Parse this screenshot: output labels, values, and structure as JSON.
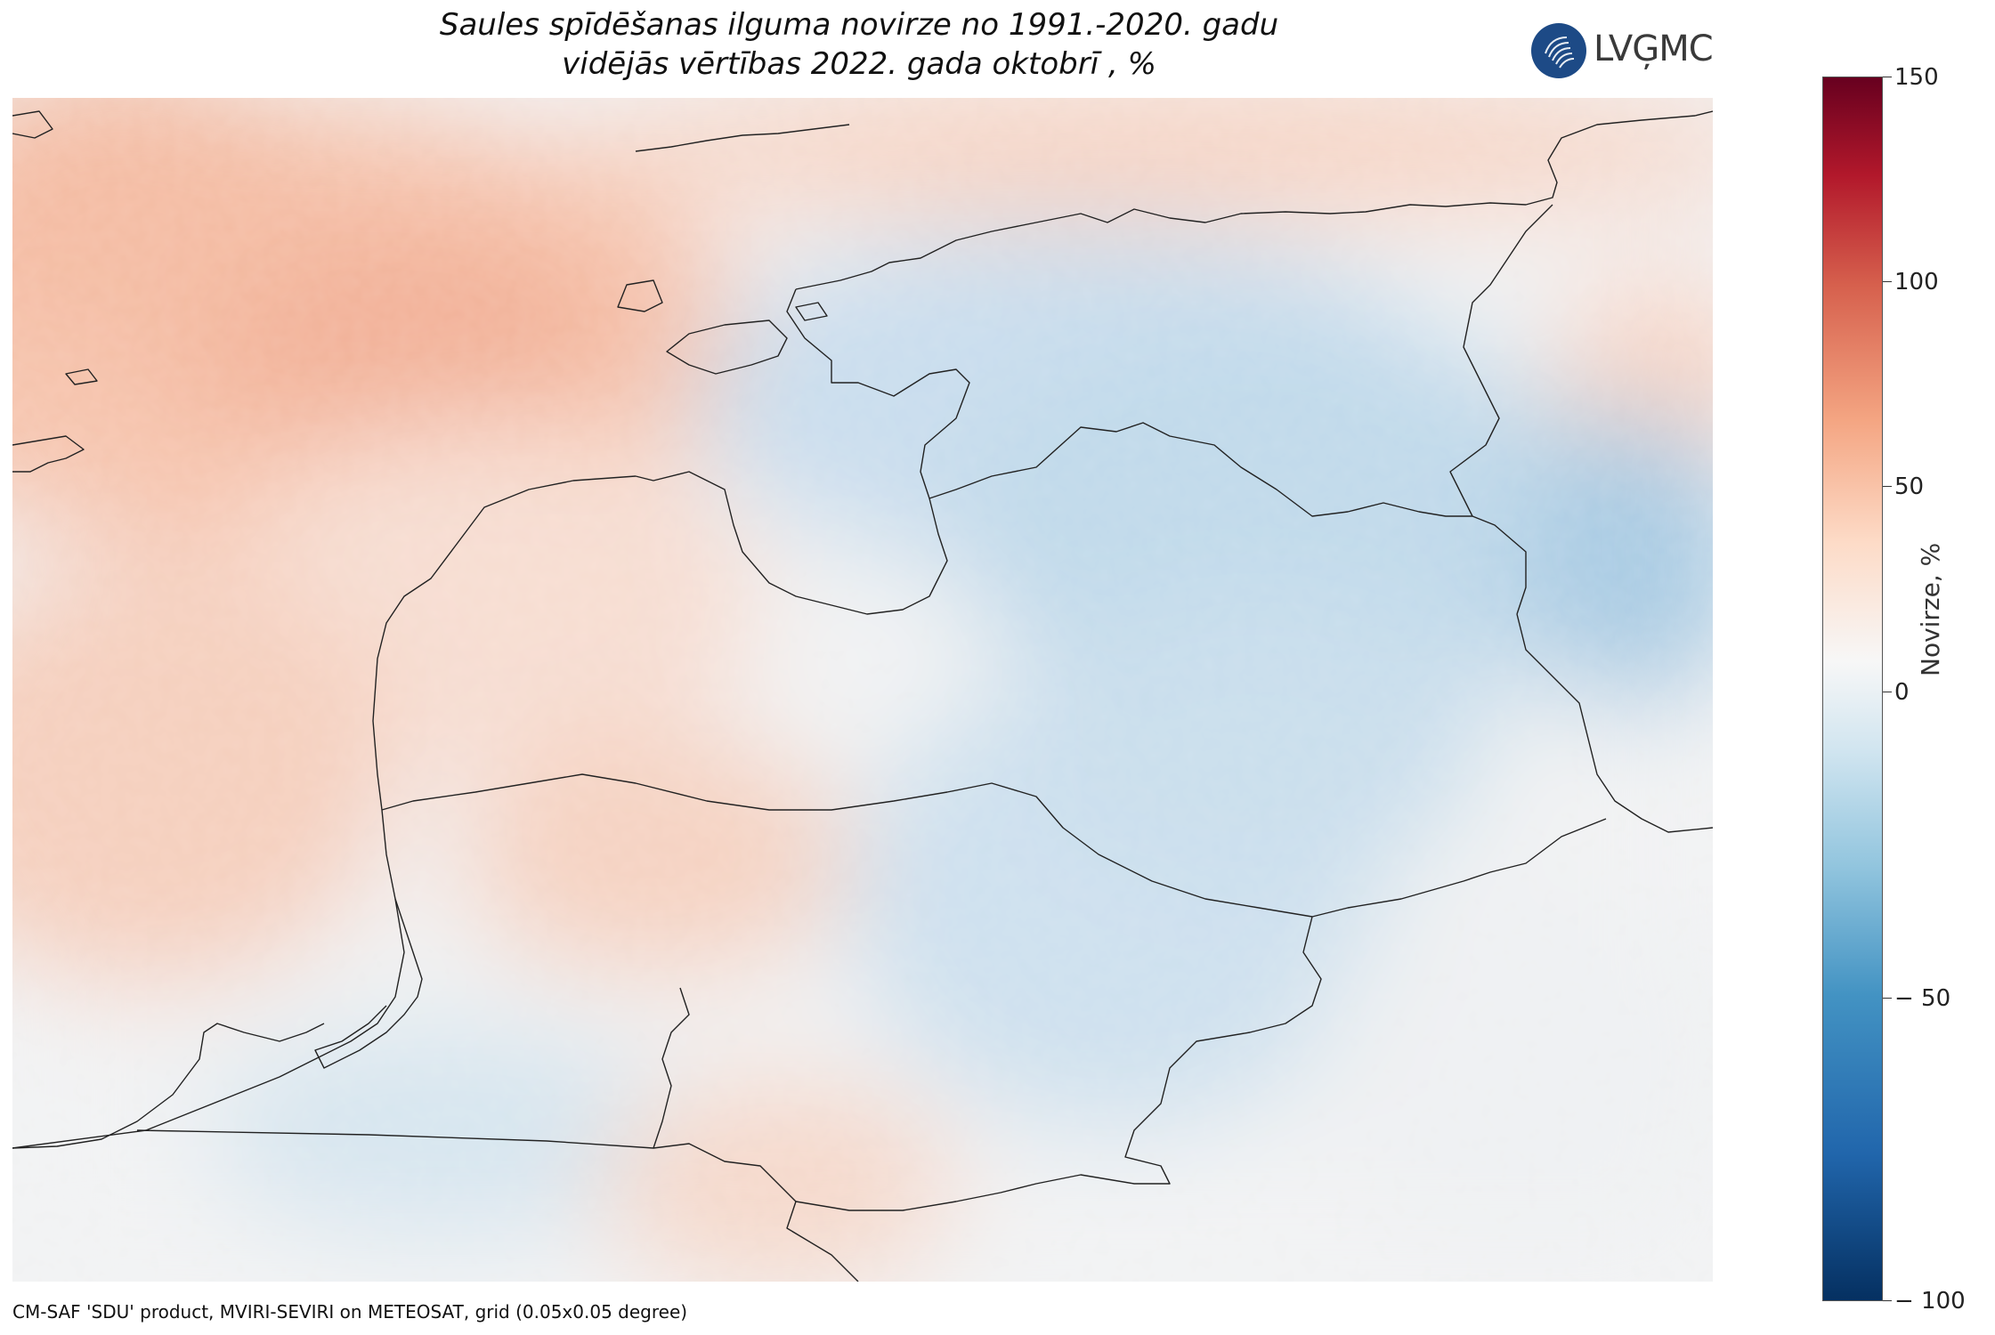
{
  "title": {
    "line1": "Saules spīdēšanas ilguma novirze no 1991.-2020. gadu",
    "line2": "vidējās vērtības 2022. gada oktobrī , %"
  },
  "logo": {
    "text": "LVĢMC",
    "color": "#1d4a86"
  },
  "colorbar": {
    "label": "Novirze, %",
    "ticks": [
      "150",
      "100",
      "50",
      "0",
      "− 50",
      "− 100"
    ],
    "tick_values": [
      150,
      100,
      50,
      0,
      -50,
      -100
    ],
    "range": [
      -100,
      150
    ],
    "colormap": "RdBu_r",
    "colors": {
      "min": "#053061",
      "neutral": "#f7f7f7",
      "max": "#67001f"
    }
  },
  "footer": "CM-SAF 'SDU' product, MVIRI-SEVIRI on METEOSAT, grid (0.05x0.05 degree)"
}
